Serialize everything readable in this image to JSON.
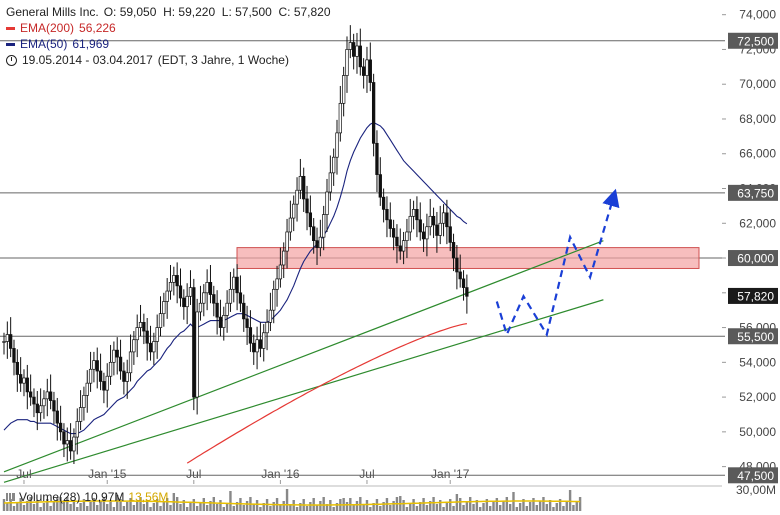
{
  "legend": {
    "symbol": "General Mills Inc.",
    "ohlc": "O: 59,050  H: 59,220  L: 57,500  C: 57,820",
    "ema200_label": "EMA(200)",
    "ema200_value": "56,226",
    "ema50_label": "EMA(50)",
    "ema50_value": "61,969",
    "range": "19.05.2014 - 03.04.2017",
    "range_info": "(EDT, 3 Jahre, 1 Woche)"
  },
  "volume_legend": {
    "label": "Volume(28)",
    "value": "10,97M",
    "avg": "13,56M"
  },
  "colors": {
    "price": "#111111",
    "ema200": "#e53935",
    "ema50": "#1a237e",
    "trend": "#2e8b2e",
    "zone_fill": "#f4a3a3",
    "zone_stroke": "#d05050",
    "projection": "#1a3fd6",
    "volume": "#888888",
    "volume_avg": "#e8c000",
    "price_box": "#1a1a1a"
  },
  "chart_data": {
    "type": "line",
    "ylim": [
      47,
      74.5
    ],
    "y_ticks": [
      "74,000",
      "72,000",
      "70,000",
      "68,000",
      "66,000",
      "64,000",
      "62,000",
      "60,000",
      "58,000",
      "56,000",
      "54,000",
      "52,000",
      "50,000",
      "48,000"
    ],
    "x_ticks": [
      "Jul",
      "Jan '15",
      "Jul",
      "Jan '16",
      "Jul",
      "Jan '17"
    ],
    "x_tick_index": [
      6,
      31,
      57,
      83,
      109,
      134
    ],
    "n_points": 174,
    "close": [
      55.2,
      55.6,
      54.8,
      54.0,
      53.3,
      52.8,
      53.1,
      52.3,
      52.0,
      51.6,
      51.1,
      51.5,
      51.9,
      52.3,
      51.8,
      51.2,
      50.5,
      50.0,
      49.3,
      49.5,
      48.9,
      49.7,
      50.6,
      51.4,
      52.1,
      52.8,
      53.6,
      54.1,
      53.5,
      52.9,
      52.4,
      53.2,
      54.0,
      54.7,
      54.3,
      53.5,
      52.9,
      53.4,
      54.6,
      55.3,
      56.0,
      56.3,
      55.8,
      55.1,
      54.6,
      55.2,
      56.0,
      56.8,
      57.5,
      58.1,
      58.6,
      59.0,
      58.4,
      57.7,
      57.2,
      57.8,
      58.3,
      52.0,
      56.9,
      57.4,
      58.0,
      58.6,
      57.9,
      57.4,
      56.6,
      56.0,
      56.7,
      57.4,
      58.2,
      58.9,
      58.0,
      57.4,
      56.5,
      56.0,
      55.1,
      54.6,
      55.3,
      54.8,
      55.7,
      56.3,
      57.0,
      58.2,
      58.8,
      59.6,
      60.4,
      61.5,
      62.3,
      63.1,
      63.9,
      64.7,
      63.4,
      62.6,
      61.8,
      61.0,
      60.6,
      61.2,
      62.5,
      63.8,
      64.9,
      65.8,
      67.2,
      68.9,
      70.5,
      72.0,
      72.4,
      71.6,
      72.2,
      71.0,
      70.5,
      71.4,
      70.1,
      66.6,
      64.8,
      63.5,
      62.8,
      62.2,
      61.7,
      61.2,
      60.7,
      60.4,
      61.0,
      61.5,
      62.4,
      62.8,
      62.2,
      61.5,
      61.1,
      61.8,
      62.4,
      61.9,
      61.3,
      62.0,
      62.6,
      61.8,
      60.9,
      60.0,
      59.2,
      58.8,
      58.3,
      57.8
    ],
    "ema50": [
      50.1,
      50.3,
      50.5,
      50.6,
      50.7,
      50.7,
      50.7,
      50.7,
      50.6,
      50.6,
      50.5,
      50.5,
      50.5,
      50.5,
      50.5,
      50.4,
      50.3,
      50.2,
      50.1,
      50.0,
      49.9,
      49.9,
      49.9,
      50.0,
      50.1,
      50.3,
      50.5,
      50.7,
      50.8,
      50.9,
      51.0,
      51.2,
      51.4,
      51.6,
      51.8,
      51.9,
      52.0,
      52.2,
      52.4,
      52.6,
      52.9,
      53.1,
      53.3,
      53.5,
      53.6,
      53.8,
      54.0,
      54.2,
      54.5,
      54.8,
      55.0,
      55.3,
      55.5,
      55.7,
      55.8,
      56.0,
      56.2,
      56.0,
      56.0,
      56.1,
      56.2,
      56.3,
      56.4,
      56.4,
      56.4,
      56.4,
      56.4,
      56.5,
      56.6,
      56.7,
      56.8,
      56.8,
      56.8,
      56.7,
      56.6,
      56.5,
      56.4,
      56.3,
      56.3,
      56.3,
      56.4,
      56.6,
      56.8,
      57.0,
      57.3,
      57.6,
      58.0,
      58.4,
      58.9,
      59.4,
      59.8,
      60.1,
      60.4,
      60.6,
      60.8,
      61.0,
      61.3,
      61.6,
      62.0,
      62.4,
      62.9,
      63.5,
      64.2,
      65.0,
      65.6,
      66.1,
      66.5,
      66.9,
      67.2,
      67.5,
      67.7,
      67.8,
      67.7,
      67.6,
      67.4,
      67.1,
      66.8,
      66.5,
      66.2,
      65.9,
      65.6,
      65.4,
      65.2,
      65.0,
      64.8,
      64.6,
      64.4,
      64.2,
      64.0,
      63.8,
      63.6,
      63.4,
      63.2,
      63.0,
      62.8,
      62.6,
      62.4,
      62.3,
      62.1,
      61.97
    ],
    "ema200_start": 48.2,
    "ema200_end": 56.226,
    "ema50_value": 61.969,
    "last_close": 57.82,
    "price_labels": [
      "72,500",
      "63,750",
      "60,000",
      "57,820",
      "55,500",
      "47,500"
    ],
    "price_levels": [
      72.5,
      63.75,
      60.0,
      57.82,
      55.5,
      47.5
    ],
    "resistance_zone": [
      59.4,
      60.6
    ],
    "trendlines": [
      {
        "from": [
          0,
          47.7
        ],
        "to": [
          180,
          61.0
        ]
      },
      {
        "from": [
          0,
          47.1
        ],
        "to": [
          180,
          57.6
        ]
      }
    ],
    "projection": [
      {
        "i": 148,
        "v": 57.5
      },
      {
        "i": 151,
        "v": 55.6
      },
      {
        "i": 156,
        "v": 57.8
      },
      {
        "i": 163,
        "v": 55.6
      },
      {
        "i": 170,
        "v": 61.2
      },
      {
        "i": 176,
        "v": 58.9
      },
      {
        "i": 183,
        "v": 63.5
      }
    ],
    "volume_axis_label": "30,00M"
  }
}
